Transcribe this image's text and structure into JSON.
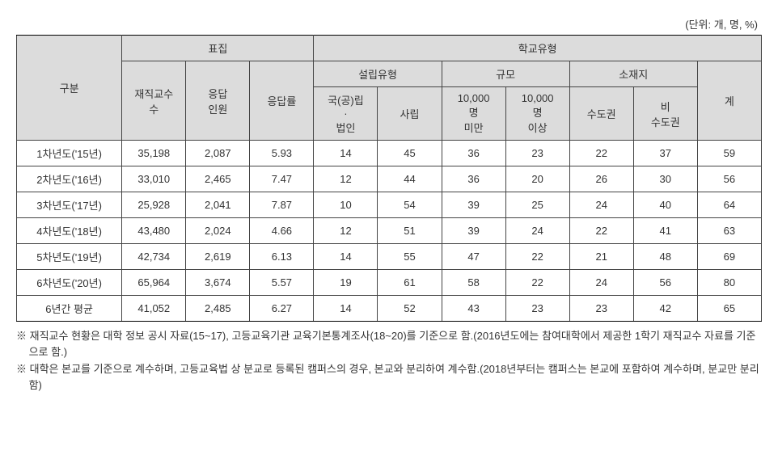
{
  "unit_label": "(단위: 개, 명, %)",
  "head": {
    "c0": "구분",
    "g1": "표집",
    "g1a": "재직교수\n수",
    "g1b": "응답\n인원",
    "g1c": "응답률",
    "g2": "학교유형",
    "g2a": "설립유형",
    "g2a1": "국(공)립\n·\n법인",
    "g2a2": "사립",
    "g2b": "규모",
    "g2b1": "10,000\n명\n미만",
    "g2b2": "10,000\n명\n이상",
    "g2c": "소재지",
    "g2c1": "수도권",
    "g2c2": "비\n수도권",
    "g2d": "계"
  },
  "rows": [
    {
      "label": "1차년도('15년)",
      "v": [
        "35,198",
        "2,087",
        "5.93",
        "14",
        "45",
        "36",
        "23",
        "22",
        "37",
        "59"
      ]
    },
    {
      "label": "2차년도('16년)",
      "v": [
        "33,010",
        "2,465",
        "7.47",
        "12",
        "44",
        "36",
        "20",
        "26",
        "30",
        "56"
      ]
    },
    {
      "label": "3차년도('17년)",
      "v": [
        "25,928",
        "2,041",
        "7.87",
        "10",
        "54",
        "39",
        "25",
        "24",
        "40",
        "64"
      ]
    },
    {
      "label": "4차년도('18년)",
      "v": [
        "43,480",
        "2,024",
        "4.66",
        "12",
        "51",
        "39",
        "24",
        "22",
        "41",
        "63"
      ]
    },
    {
      "label": "5차년도('19년)",
      "v": [
        "42,734",
        "2,619",
        "6.13",
        "14",
        "55",
        "47",
        "22",
        "21",
        "48",
        "69"
      ]
    },
    {
      "label": "6차년도('20년)",
      "v": [
        "65,964",
        "3,674",
        "5.57",
        "19",
        "61",
        "58",
        "22",
        "24",
        "56",
        "80"
      ]
    },
    {
      "label": "6년간 평균",
      "v": [
        "41,052",
        "2,485",
        "6.27",
        "14",
        "52",
        "43",
        "23",
        "23",
        "42",
        "65"
      ]
    }
  ],
  "footnotes": [
    "※ 재직교수 현황은 대학 정보 공시 자료(15~17), 고등교육기관 교육기본통계조사(18~20)를 기준으로 함.(2016년도에는 참여대학에서 제공한 1학기 재직교수 자료를 기준으로 함.)",
    "※ 대학은 본교를 기준으로 계수하며, 고등교육법 상 분교로 등록된 캠퍼스의 경우, 본교와 분리하여 계수함.(2018년부터는 캠퍼스는 본교에 포함하여 계수하며, 분교만 분리함)"
  ],
  "style": {
    "header_bg": "#dcdcdc",
    "border_color": "#444444",
    "font_size": 13,
    "text_color": "#333333"
  }
}
